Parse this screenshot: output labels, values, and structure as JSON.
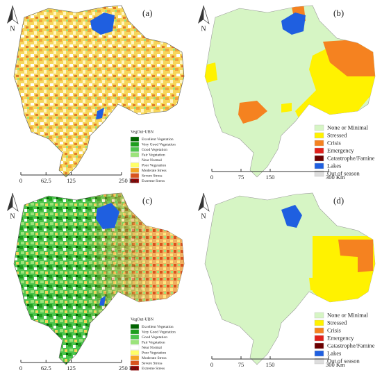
{
  "panels": [
    {
      "label": "(a)",
      "north": "N",
      "legend": {
        "title": "VegOut-UBN",
        "items": [
          "Excellent Vegetation",
          "Very Good Vegetation",
          "Good Vegetation",
          "Fair Vegetation",
          "Near Normal",
          "Poor Vegetation",
          "Moderate Stress",
          "Severe Stress",
          "Extreme Stress"
        ]
      },
      "scale": [
        "0",
        "62.5",
        "125",
        "250 Km"
      ]
    },
    {
      "label": "(b)",
      "north": "N",
      "legend": {
        "items": [
          "None or Minimal",
          "Stressed",
          "Crisis",
          "Emergency",
          "Catastrophe/Famine",
          "Lakes",
          "Out of season"
        ]
      },
      "scale": [
        "0",
        "75",
        "150",
        "300 Km"
      ]
    },
    {
      "label": "(c)",
      "north": "N",
      "legend": {
        "title": "VegOut-UBN",
        "items": [
          "Excellent Vegetation",
          "Very Good Vegetation",
          "Good Vegetation",
          "Fair Vegetation",
          "Near Normal",
          "Poor Vegetation",
          "Moderate Stress",
          "Severe Stress",
          "Extreme Stress"
        ]
      },
      "scale": [
        "0",
        "62.5",
        "125",
        "250 Km"
      ]
    },
    {
      "label": "(d)",
      "north": "N",
      "legend": {
        "items": [
          "None or Minimal",
          "Stressed",
          "Crisis",
          "Emergency",
          "Catastrophe/Famine",
          "Lakes",
          "Out of season"
        ]
      },
      "scale": [
        "0",
        "75",
        "150",
        "300 Km"
      ]
    }
  ]
}
